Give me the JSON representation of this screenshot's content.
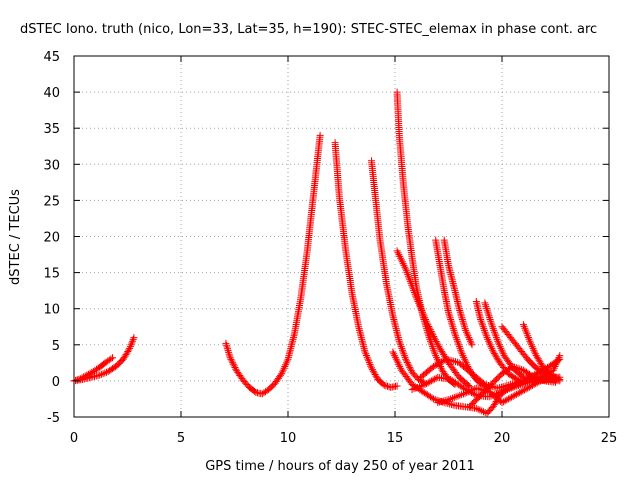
{
  "chart_data": {
    "type": "scatter",
    "title": "dSTEC Iono. truth (nico, Lon=33, Lat=35, h=190): STEC-STEC_elemax in phase cont. arc",
    "xlabel": "GPS time / hours of day 250 of year 2011",
    "ylabel": "dSTEC  / TECUs",
    "xlim": [
      0,
      25
    ],
    "ylim": [
      -5,
      45
    ],
    "xticks": [
      0,
      5,
      10,
      15,
      20,
      25
    ],
    "yticks": [
      -5,
      0,
      5,
      10,
      15,
      20,
      25,
      30,
      35,
      40,
      45
    ],
    "grid": true,
    "marker": "+",
    "color": "#ff0000",
    "series": [
      {
        "x": [
          0.0,
          0.3,
          0.6,
          0.9,
          1.2,
          1.5,
          1.8
        ],
        "y": [
          0.0,
          0.3,
          0.8,
          1.3,
          1.9,
          2.6,
          3.2
        ]
      },
      {
        "x": [
          0.0,
          0.4,
          0.8,
          1.2,
          1.6,
          2.0,
          2.3,
          2.6,
          2.8
        ],
        "y": [
          0.0,
          0.2,
          0.5,
          0.8,
          1.3,
          2.1,
          3.0,
          4.5,
          6.0
        ]
      },
      {
        "x": [
          7.1,
          7.3,
          7.6,
          7.9,
          8.2,
          8.5,
          8.8,
          9.1,
          9.4,
          9.7,
          10.0,
          10.3,
          10.6,
          10.9,
          11.2,
          11.5
        ],
        "y": [
          5.2,
          3.2,
          1.4,
          0.1,
          -0.9,
          -1.6,
          -1.8,
          -1.2,
          -0.3,
          1.0,
          3.0,
          6.5,
          11.5,
          18.0,
          26.0,
          34.0
        ]
      },
      {
        "x": [
          12.2,
          12.4,
          12.7,
          13.0,
          13.3,
          13.6,
          13.9,
          14.2,
          14.5,
          14.8,
          15.1
        ],
        "y": [
          33.0,
          25.5,
          18.0,
          12.0,
          7.5,
          4.0,
          1.8,
          0.2,
          -0.6,
          -0.9,
          -0.7
        ]
      },
      {
        "x": [
          13.9,
          14.1,
          14.3,
          14.6,
          14.9,
          15.2,
          15.5,
          15.8,
          16.1,
          16.4
        ],
        "y": [
          30.5,
          25.0,
          19.5,
          13.5,
          9.0,
          5.5,
          3.0,
          1.2,
          0.2,
          -0.3
        ]
      },
      {
        "x": [
          15.1,
          15.2,
          15.4,
          15.6,
          15.8,
          16.0,
          16.3,
          16.6,
          16.9,
          17.2,
          17.5,
          17.8
        ],
        "y": [
          40.0,
          34.0,
          27.0,
          21.5,
          17.0,
          13.0,
          9.0,
          6.0,
          3.5,
          1.5,
          0.2,
          -0.5
        ]
      },
      {
        "x": [
          15.1,
          15.5,
          16.0,
          16.5,
          17.0,
          17.5,
          18.0,
          18.5
        ],
        "y": [
          18.0,
          15.5,
          11.5,
          8.0,
          5.0,
          2.5,
          0.5,
          -0.8
        ]
      },
      {
        "x": [
          16.9,
          17.1,
          17.3,
          17.5,
          17.8,
          18.1,
          18.4,
          18.7,
          19.0,
          19.4
        ],
        "y": [
          19.5,
          16.0,
          12.5,
          9.5,
          6.5,
          4.0,
          2.0,
          0.5,
          -0.4,
          -1.0
        ]
      },
      {
        "x": [
          17.3,
          17.5,
          17.8,
          18.0,
          18.3,
          18.6
        ],
        "y": [
          19.5,
          16.0,
          12.5,
          10.0,
          7.0,
          5.0
        ]
      },
      {
        "x": [
          18.8,
          19.0,
          19.3,
          19.6,
          19.9,
          20.3,
          20.7,
          21.1
        ],
        "y": [
          11.0,
          8.5,
          6.0,
          4.0,
          2.5,
          1.0,
          0.2,
          -0.3
        ]
      },
      {
        "x": [
          19.2,
          19.5,
          19.8,
          20.1,
          20.5,
          21.0,
          21.5
        ],
        "y": [
          10.8,
          8.0,
          5.5,
          3.5,
          1.8,
          0.5,
          0.0
        ]
      },
      {
        "x": [
          20.0,
          20.4,
          20.8,
          21.2,
          21.6,
          22.0,
          22.4
        ],
        "y": [
          7.5,
          6.0,
          4.5,
          3.0,
          1.8,
          1.0,
          0.5
        ]
      },
      {
        "x": [
          21.0,
          21.3,
          21.6,
          21.9,
          22.2,
          22.5,
          22.7
        ],
        "y": [
          7.8,
          5.5,
          3.5,
          2.0,
          1.0,
          0.5,
          0.2
        ]
      },
      {
        "x": [
          14.9,
          15.3,
          15.8,
          16.3,
          16.8,
          17.3,
          17.8,
          18.3,
          18.8,
          19.3,
          19.6,
          19.9,
          20.3,
          20.7,
          21.2,
          21.7,
          22.2,
          22.7
        ],
        "y": [
          4.0,
          1.5,
          -0.5,
          -1.5,
          -2.5,
          -3.0,
          -3.4,
          -3.6,
          -3.8,
          -4.5,
          -3.5,
          -2.0,
          -1.0,
          -0.5,
          -0.2,
          0.0,
          0.2,
          0.0
        ]
      },
      {
        "x": [
          15.8,
          16.4,
          17.0,
          17.6,
          18.2,
          18.8,
          19.4,
          20.0,
          20.6,
          21.2,
          21.8,
          22.4,
          22.7
        ],
        "y": [
          -1.2,
          -0.5,
          0.5,
          0.2,
          -1.0,
          -2.0,
          -2.2,
          -1.5,
          -0.8,
          -0.2,
          0.5,
          1.5,
          3.5
        ]
      },
      {
        "x": [
          16.2,
          16.8,
          17.4,
          18.0,
          18.6,
          19.2,
          19.8,
          20.4,
          21.0,
          21.6,
          22.2,
          22.7
        ],
        "y": [
          0.5,
          2.0,
          3.0,
          2.5,
          1.0,
          -0.5,
          -1.0,
          -0.5,
          0.0,
          1.0,
          2.0,
          3.0
        ]
      },
      {
        "x": [
          17.0,
          17.6,
          18.2,
          18.8,
          19.4,
          20.0,
          20.6,
          21.2,
          21.8,
          22.4,
          22.7
        ],
        "y": [
          -3.0,
          -2.5,
          -1.8,
          -1.0,
          -1.5,
          -3.0,
          -2.0,
          -1.0,
          0.0,
          0.5,
          0.5
        ]
      },
      {
        "x": [
          18.5,
          19.0,
          19.5,
          20.0,
          20.5,
          21.0,
          21.5,
          22.0,
          22.5
        ],
        "y": [
          -3.5,
          -2.0,
          -0.5,
          1.0,
          2.0,
          1.5,
          0.5,
          0.0,
          -0.2
        ]
      }
    ]
  }
}
